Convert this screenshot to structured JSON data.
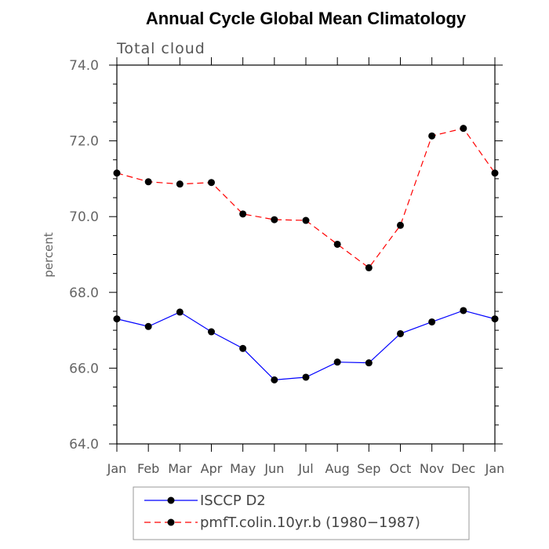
{
  "chart_data": {
    "type": "line",
    "title": "Annual Cycle Global Mean Climatology",
    "subtitle": "Total cloud",
    "xlabel": "",
    "ylabel": "percent",
    "categories": [
      "Jan",
      "Feb",
      "Mar",
      "Apr",
      "May",
      "Jun",
      "Jul",
      "Aug",
      "Sep",
      "Oct",
      "Nov",
      "Dec",
      "Jan"
    ],
    "ylim": [
      64.0,
      74.0
    ],
    "yticks": [
      "64.0",
      "66.0",
      "68.0",
      "70.0",
      "72.0",
      "74.0"
    ],
    "grid": false,
    "legend_position": "bottom",
    "series": [
      {
        "name": "ISCCP D2",
        "color": "#0000ff",
        "line_style": "solid",
        "marker": "filled-circle",
        "values": [
          67.3,
          67.1,
          67.48,
          66.96,
          66.52,
          65.69,
          65.76,
          66.16,
          66.14,
          66.91,
          67.22,
          67.52,
          67.3
        ]
      },
      {
        "name": "pmfT.colin.10yr.b (1980−1987)",
        "color": "#ff0000",
        "line_style": "dashed",
        "marker": "filled-circle",
        "values": [
          71.15,
          70.92,
          70.86,
          70.9,
          70.07,
          69.92,
          69.9,
          69.27,
          68.65,
          69.77,
          72.13,
          72.33,
          71.15
        ]
      }
    ]
  }
}
